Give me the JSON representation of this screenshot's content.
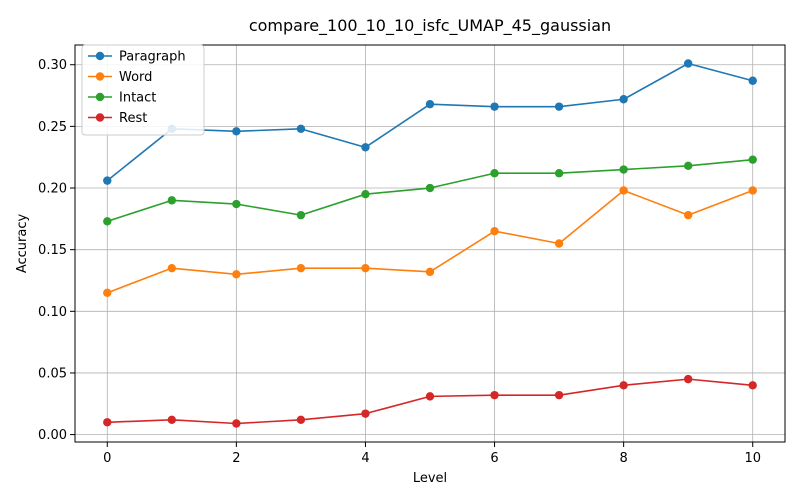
{
  "chart_data": {
    "type": "line",
    "title": "compare_100_10_10_isfc_UMAP_45_gaussian",
    "xlabel": "Level",
    "ylabel": "Accuracy",
    "x": [
      0,
      1,
      2,
      3,
      4,
      5,
      6,
      7,
      8,
      9,
      10
    ],
    "xlim": [
      -0.5,
      10.5
    ],
    "ylim": [
      -0.006,
      0.316
    ],
    "xticks": [
      0,
      2,
      4,
      6,
      8,
      10
    ],
    "xtick_labels": [
      "0",
      "2",
      "4",
      "6",
      "8",
      "10"
    ],
    "yticks": [
      0.0,
      0.05,
      0.1,
      0.15,
      0.2,
      0.25,
      0.3
    ],
    "ytick_labels": [
      "0.00",
      "0.05",
      "0.10",
      "0.15",
      "0.20",
      "0.25",
      "0.30"
    ],
    "grid": true,
    "legend_position": "upper-left",
    "series": [
      {
        "name": "Paragraph",
        "color": "#1f77b4",
        "values": [
          0.206,
          0.248,
          0.246,
          0.248,
          0.233,
          0.268,
          0.266,
          0.266,
          0.272,
          0.301,
          0.287
        ]
      },
      {
        "name": "Word",
        "color": "#ff7f0e",
        "values": [
          0.115,
          0.135,
          0.13,
          0.135,
          0.135,
          0.132,
          0.165,
          0.155,
          0.198,
          0.178,
          0.198
        ]
      },
      {
        "name": "Intact",
        "color": "#2ca02c",
        "values": [
          0.173,
          0.19,
          0.187,
          0.178,
          0.195,
          0.2,
          0.212,
          0.212,
          0.215,
          0.218,
          0.223
        ]
      },
      {
        "name": "Rest",
        "color": "#d62728",
        "values": [
          0.01,
          0.012,
          0.009,
          0.012,
          0.017,
          0.031,
          0.032,
          0.032,
          0.04,
          0.045,
          0.04
        ]
      }
    ]
  }
}
